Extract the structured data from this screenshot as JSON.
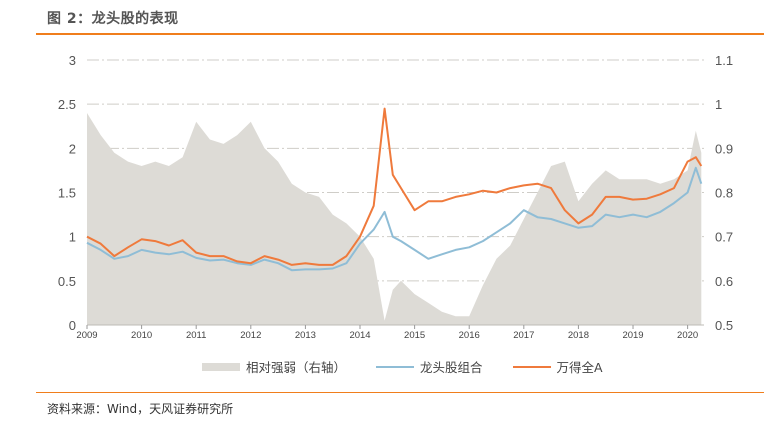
{
  "header": {
    "title": "图 2：龙头股的表现"
  },
  "footer": {
    "source": "资料来源：Wind，天风证券研究所"
  },
  "legend": {
    "items": [
      {
        "label": "相对强弱（右轴）",
        "color": "#dddbd6",
        "kind": "area"
      },
      {
        "label": "龙头股组合",
        "color": "#8fbdd6",
        "kind": "line"
      },
      {
        "label": "万得全A",
        "color": "#ef7a3c",
        "kind": "line"
      }
    ]
  },
  "axes": {
    "left_ticks": [
      "0",
      "0.5",
      "1",
      "1.5",
      "2",
      "2.5",
      "3"
    ],
    "right_ticks": [
      "0.5",
      "0.6",
      "0.7",
      "0.8",
      "0.9",
      "1",
      "1.1"
    ],
    "x_ticks": [
      "2009",
      "2010",
      "2011",
      "2012",
      "2013",
      "2014",
      "2015",
      "2016",
      "2017",
      "2018",
      "2019",
      "2020"
    ]
  },
  "chart_data": {
    "type": "line",
    "title": "图 2：龙头股的表现",
    "xlabel": "",
    "ylabel": "",
    "ylim": [
      0,
      3
    ],
    "y2lim": [
      0.5,
      1.1
    ],
    "grid": true,
    "legend_position": "bottom",
    "x": [
      2009.0,
      2009.25,
      2009.5,
      2009.75,
      2010.0,
      2010.25,
      2010.5,
      2010.75,
      2011.0,
      2011.25,
      2011.5,
      2011.75,
      2012.0,
      2012.25,
      2012.5,
      2012.75,
      2013.0,
      2013.25,
      2013.5,
      2013.75,
      2014.0,
      2014.25,
      2014.45,
      2014.6,
      2014.75,
      2015.0,
      2015.25,
      2015.5,
      2015.75,
      2016.0,
      2016.25,
      2016.5,
      2016.75,
      2017.0,
      2017.25,
      2017.5,
      2017.75,
      2018.0,
      2018.25,
      2018.5,
      2018.75,
      2019.0,
      2019.25,
      2019.5,
      2019.75,
      2020.0,
      2020.15,
      2020.25
    ],
    "series": [
      {
        "name": "相对强弱（右轴）",
        "axis": "right",
        "type": "area",
        "values": [
          0.98,
          0.93,
          0.89,
          0.87,
          0.86,
          0.87,
          0.86,
          0.88,
          0.96,
          0.92,
          0.91,
          0.93,
          0.96,
          0.9,
          0.87,
          0.82,
          0.8,
          0.79,
          0.75,
          0.73,
          0.7,
          0.65,
          0.51,
          0.58,
          0.6,
          0.57,
          0.55,
          0.53,
          0.52,
          0.52,
          0.59,
          0.65,
          0.68,
          0.74,
          0.8,
          0.86,
          0.87,
          0.78,
          0.82,
          0.85,
          0.83,
          0.83,
          0.83,
          0.82,
          0.83,
          0.85,
          0.94,
          0.89
        ]
      },
      {
        "name": "龙头股组合",
        "axis": "left",
        "type": "line",
        "values": [
          0.93,
          0.85,
          0.75,
          0.78,
          0.85,
          0.82,
          0.8,
          0.83,
          0.76,
          0.73,
          0.74,
          0.7,
          0.68,
          0.74,
          0.7,
          0.62,
          0.63,
          0.63,
          0.64,
          0.7,
          0.92,
          1.08,
          1.28,
          1.0,
          0.95,
          0.85,
          0.75,
          0.8,
          0.85,
          0.88,
          0.95,
          1.05,
          1.15,
          1.3,
          1.22,
          1.2,
          1.15,
          1.1,
          1.12,
          1.25,
          1.22,
          1.25,
          1.22,
          1.28,
          1.38,
          1.5,
          1.78,
          1.6
        ]
      },
      {
        "name": "万得全A",
        "axis": "left",
        "type": "line",
        "values": [
          1.0,
          0.92,
          0.78,
          0.88,
          0.97,
          0.95,
          0.9,
          0.96,
          0.82,
          0.78,
          0.78,
          0.72,
          0.7,
          0.78,
          0.74,
          0.68,
          0.7,
          0.68,
          0.68,
          0.78,
          1.0,
          1.35,
          2.45,
          1.7,
          1.55,
          1.3,
          1.4,
          1.4,
          1.45,
          1.48,
          1.52,
          1.5,
          1.55,
          1.58,
          1.6,
          1.55,
          1.3,
          1.15,
          1.25,
          1.45,
          1.45,
          1.42,
          1.43,
          1.48,
          1.55,
          1.85,
          1.9,
          1.8
        ]
      }
    ]
  }
}
